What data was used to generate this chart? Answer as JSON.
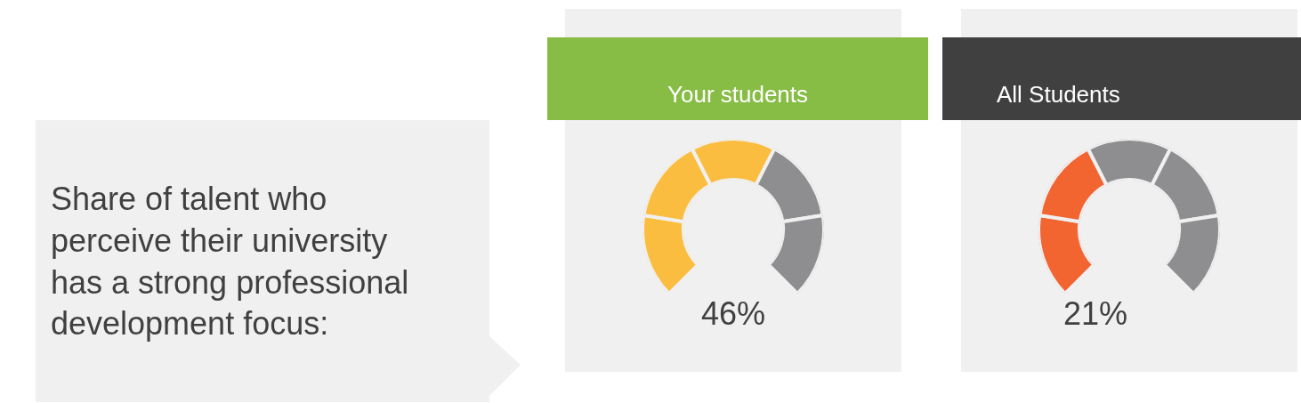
{
  "chart_data": [
    {
      "type": "other",
      "title": "Share of talent who perceive their university has a strong professional development focus:"
    },
    {
      "type": "donut",
      "title": "Your students",
      "categories": [
        null,
        null,
        null,
        null,
        null
      ],
      "values": [
        20,
        20,
        20,
        20,
        20
      ],
      "colors": [
        "#fbbd3f",
        "#fbbd3f",
        "#fbbd3f",
        "#8e8d8f",
        "#8e8d8f"
      ],
      "annotations": [
        "46%"
      ]
    },
    {
      "type": "donut",
      "title": "All Students",
      "categories": [
        null,
        null,
        null,
        null,
        null
      ],
      "values": [
        20,
        20,
        20,
        20,
        20
      ],
      "colors": [
        "#f26430",
        "#f26430",
        "#8e8d8f",
        "#8e8d8f",
        "#8e8d8f"
      ],
      "annotations": [
        "21%"
      ]
    }
  ]
}
